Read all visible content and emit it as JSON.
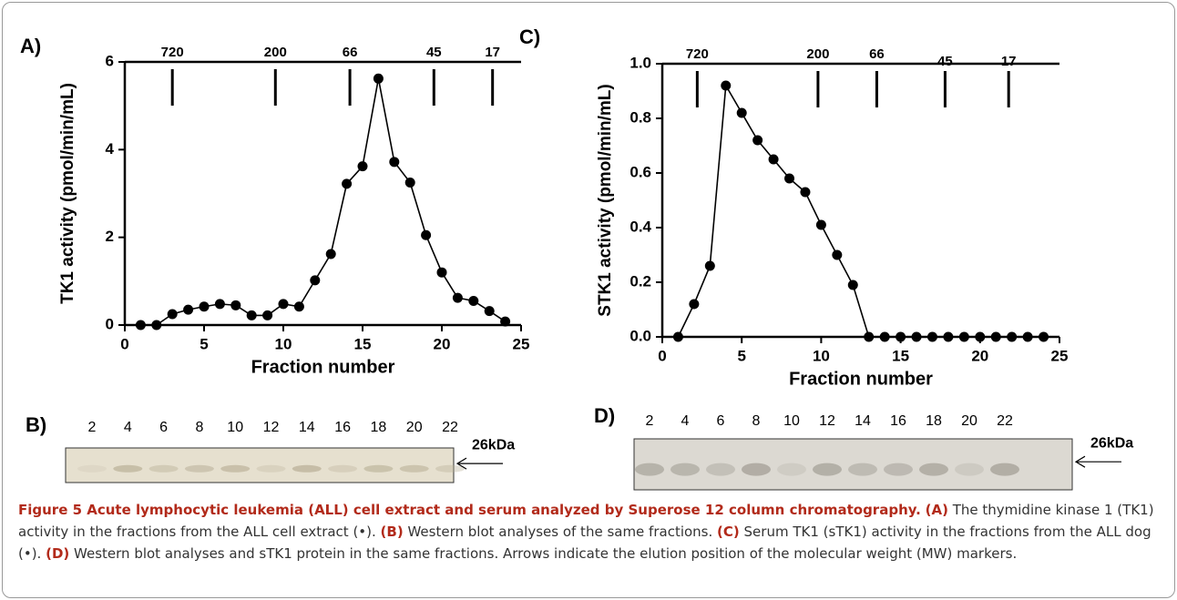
{
  "chart_data": [
    {
      "type": "line",
      "panel": "A)",
      "y_label": "TK1 activity (pmol/min/mL)",
      "x_label": "Fraction number",
      "x": [
        1,
        2,
        3,
        4,
        5,
        6,
        7,
        8,
        9,
        10,
        11,
        12,
        13,
        14,
        15,
        16,
        17,
        18,
        19,
        20,
        21,
        22,
        23,
        24
      ],
      "values": [
        0,
        0,
        0.25,
        0.35,
        0.42,
        0.48,
        0.45,
        0.22,
        0.22,
        0.48,
        0.42,
        1.02,
        1.62,
        3.22,
        3.62,
        5.62,
        3.72,
        3.25,
        2.05,
        1.2,
        0.62,
        0.55,
        0.32,
        0.08
      ],
      "xlim": [
        0,
        25
      ],
      "xticks": [
        0,
        5,
        10,
        15,
        20,
        25
      ],
      "ylim": [
        0,
        6
      ],
      "yticks": [
        0,
        2,
        4,
        6
      ],
      "color": "#000000",
      "markers": [
        {
          "label": "720",
          "x": 3
        },
        {
          "label": "200",
          "x": 9.5
        },
        {
          "label": "66",
          "x": 14.2
        },
        {
          "label": "45",
          "x": 19.5
        },
        {
          "label": "17",
          "x": 23.2
        }
      ]
    },
    {
      "type": "line",
      "panel": "C)",
      "y_label": "STK1 activity (pmol/min/mL)",
      "x_label": "Fraction number",
      "x": [
        1,
        2,
        3,
        4,
        5,
        6,
        7,
        8,
        9,
        10,
        11,
        12,
        13,
        14,
        15,
        16,
        17,
        18,
        19,
        20,
        21,
        22,
        23,
        24
      ],
      "values": [
        0,
        0.12,
        0.26,
        0.92,
        0.82,
        0.72,
        0.65,
        0.58,
        0.53,
        0.41,
        0.3,
        0.19,
        0,
        0,
        0,
        0,
        0,
        0,
        0,
        0,
        0,
        0,
        0,
        0
      ],
      "xlim": [
        0,
        25
      ],
      "xticks": [
        0,
        5,
        10,
        15,
        20,
        25
      ],
      "ylim": [
        0,
        1
      ],
      "yticks": [
        {
          "value": 0,
          "label": "0.0"
        },
        {
          "value": 0.2,
          "label": "0.2"
        },
        {
          "value": 0.4,
          "label": "0.4"
        },
        {
          "value": 0.6,
          "label": "0.6"
        },
        {
          "value": 0.8,
          "label": "0.8"
        },
        {
          "value": 1,
          "label": "1.0"
        }
      ],
      "color": "#000000",
      "markers": [
        {
          "label": "720",
          "x": 2.2
        },
        {
          "label": "200",
          "x": 9.8
        },
        {
          "label": "66",
          "x": 13.5
        },
        {
          "label": "45",
          "x": 17.8
        },
        {
          "label": "17",
          "x": 21.8
        }
      ]
    }
  ],
  "blots": [
    {
      "panel": "B)",
      "lanes": [
        "2",
        "4",
        "6",
        "8",
        "10",
        "12",
        "14",
        "16",
        "18",
        "20",
        "22"
      ],
      "marker": "26kDa"
    },
    {
      "panel": "D)",
      "lanes": [
        "2",
        "4",
        "6",
        "8",
        "10",
        "12",
        "14",
        "16",
        "18",
        "20",
        "22"
      ],
      "marker": "26kDa"
    }
  ],
  "caption": [
    {
      "text": "Figure 5 Acute lymphocytic leukemia (ALL) cell extract and serum analyzed by Superose 12 column chromatography.",
      "bold": true
    },
    {
      "text": " "
    },
    {
      "text": "(A)",
      "bold": true
    },
    {
      "text": " The thymidine kinase 1 (TK1) activity in the fractions from the ALL cell extract (•). "
    },
    {
      "text": "(B)",
      "bold": true
    },
    {
      "text": " Western blot analyses of the same fractions. "
    },
    {
      "text": "(C)",
      "bold": true
    },
    {
      "text": " Serum TK1 (sTK1) activity in the fractions from the ALL dog (•). "
    },
    {
      "text": "(D)",
      "bold": true
    },
    {
      "text": " Western blot analyses and sTK1 protein in the same fractions. Arrows indicate the elution position of the molecular weight (MW) markers."
    }
  ]
}
